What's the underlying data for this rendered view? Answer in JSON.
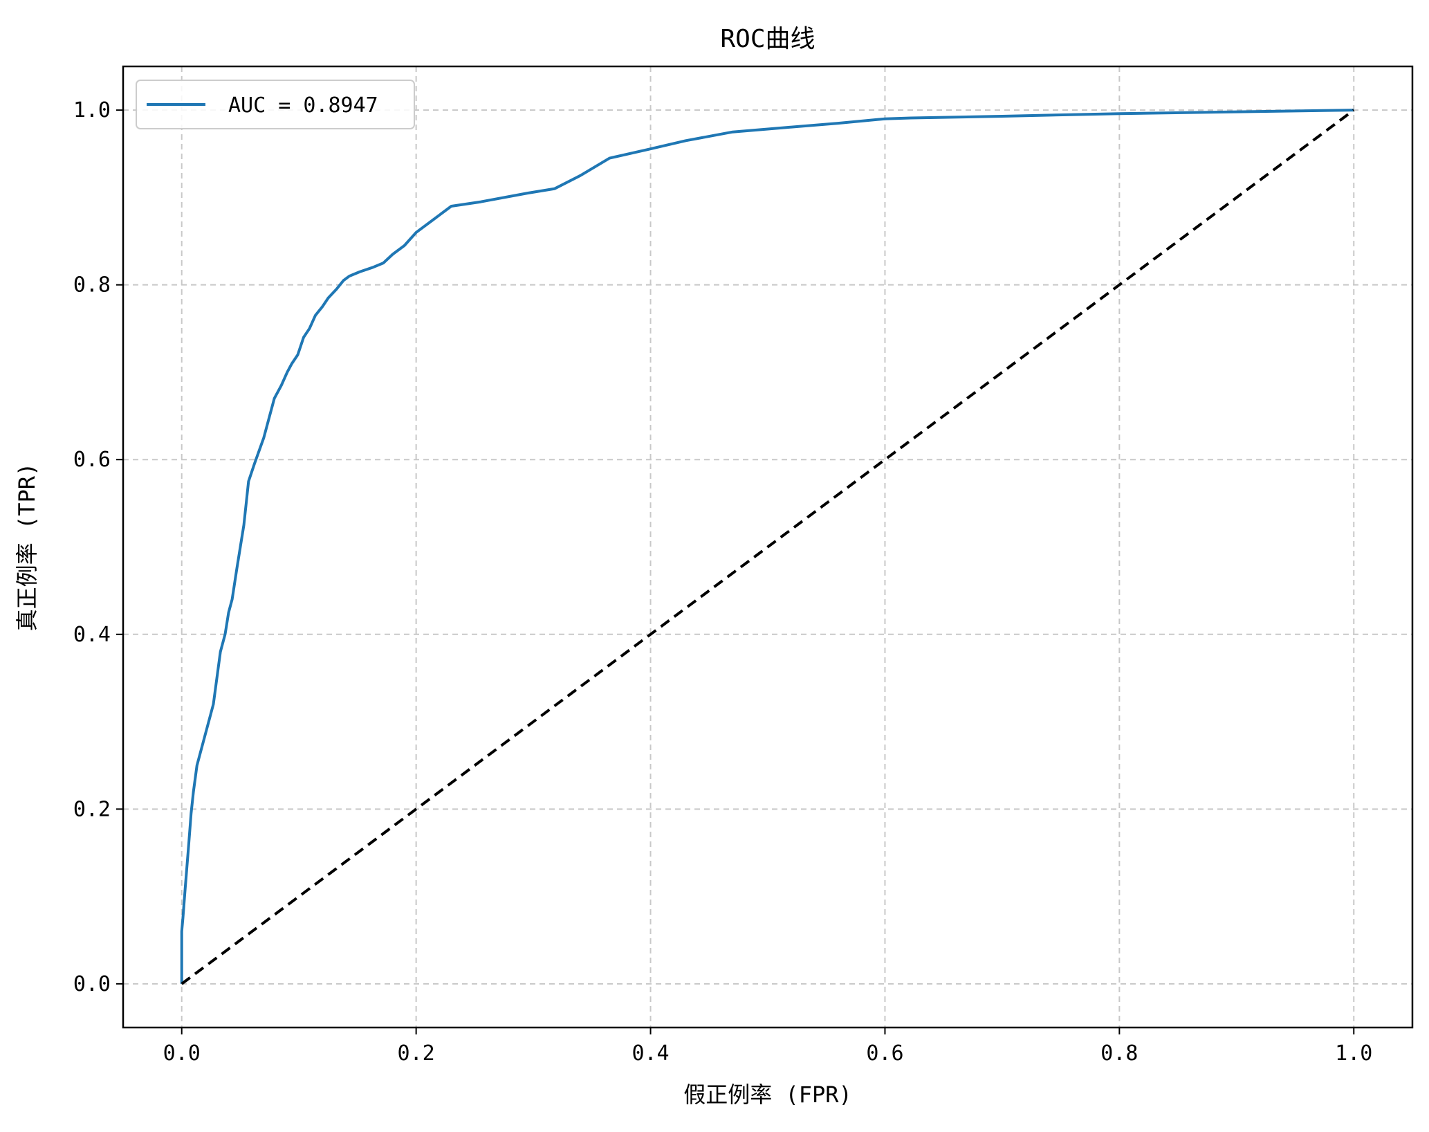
{
  "chart_data": {
    "type": "line",
    "title": "ROC曲线",
    "xlabel": "假正例率 (FPR)",
    "ylabel": "真正例率 (TPR)",
    "xlim": [
      -0.05,
      1.05
    ],
    "ylim": [
      -0.05,
      1.05
    ],
    "xticks": [
      "0.0",
      "0.2",
      "0.4",
      "0.6",
      "0.8",
      "1.0"
    ],
    "yticks": [
      "0.0",
      "0.2",
      "0.4",
      "0.6",
      "0.8",
      "1.0"
    ],
    "grid": true,
    "legend_position": "top-left",
    "series": [
      {
        "name": "AUC = 0.8947",
        "color": "#1f77b4",
        "style": "solid",
        "x": [
          0.0,
          0.0,
          0.001,
          0.003,
          0.006,
          0.008,
          0.01,
          0.013,
          0.016,
          0.02,
          0.024,
          0.027,
          0.03,
          0.033,
          0.037,
          0.04,
          0.043,
          0.047,
          0.05,
          0.053,
          0.057,
          0.062,
          0.066,
          0.07,
          0.074,
          0.079,
          0.085,
          0.09,
          0.094,
          0.099,
          0.104,
          0.109,
          0.114,
          0.12,
          0.125,
          0.132,
          0.138,
          0.143,
          0.152,
          0.163,
          0.172,
          0.18,
          0.19,
          0.2,
          0.215,
          0.23,
          0.255,
          0.295,
          0.318,
          0.34,
          0.365,
          0.398,
          0.43,
          0.47,
          0.515,
          0.56,
          0.6,
          0.622,
          0.7,
          0.8,
          0.9,
          1.0
        ],
        "y": [
          0.0,
          0.06,
          0.075,
          0.11,
          0.16,
          0.195,
          0.22,
          0.25,
          0.265,
          0.285,
          0.305,
          0.32,
          0.35,
          0.38,
          0.4,
          0.425,
          0.44,
          0.475,
          0.5,
          0.525,
          0.575,
          0.595,
          0.61,
          0.625,
          0.645,
          0.67,
          0.685,
          0.7,
          0.71,
          0.72,
          0.74,
          0.75,
          0.765,
          0.775,
          0.785,
          0.795,
          0.805,
          0.81,
          0.815,
          0.82,
          0.825,
          0.835,
          0.845,
          0.86,
          0.875,
          0.89,
          0.895,
          0.905,
          0.91,
          0.925,
          0.945,
          0.955,
          0.965,
          0.975,
          0.98,
          0.985,
          0.99,
          0.991,
          0.993,
          0.996,
          0.998,
          1.0
        ]
      },
      {
        "color": "#000000",
        "style": "dashed",
        "x": [
          0.0,
          1.0
        ],
        "y": [
          0.0,
          1.0
        ]
      }
    ]
  }
}
